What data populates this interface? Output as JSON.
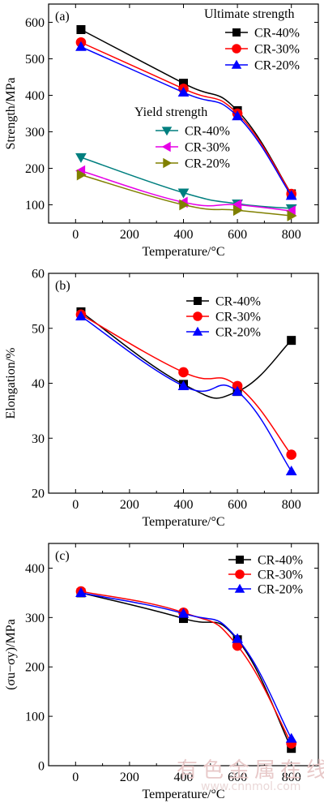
{
  "watermark": {
    "line1": "有色金属在线",
    "line2": "www.cnnmol.com"
  },
  "chart_data": [
    {
      "type": "line",
      "panel_label": "(a)",
      "xlabel": "Temperature/°C",
      "ylabel": "Strength/MPa",
      "xlim": [
        -100,
        900
      ],
      "ylim": [
        50,
        650
      ],
      "xticks": [
        0,
        200,
        400,
        600,
        800
      ],
      "yticks": [
        100,
        200,
        300,
        400,
        500,
        600
      ],
      "x": [
        20,
        400,
        600,
        800
      ],
      "legend_groups": [
        {
          "title": "Ultimate strength",
          "placement": "top-right",
          "series": [
            {
              "name": "CR-40%",
              "color": "#000000",
              "marker": "square",
              "values": [
                580,
                433,
                358,
                130
              ]
            },
            {
              "name": "CR-30%",
              "color": "#ff0000",
              "marker": "circle",
              "values": [
                545,
                418,
                350,
                130
              ]
            },
            {
              "name": "CR-20%",
              "color": "#0000ff",
              "marker": "triangle-up",
              "values": [
                533,
                408,
                343,
                125
              ]
            }
          ]
        },
        {
          "title": "Yield strength",
          "placement": "center-left",
          "series": [
            {
              "name": "CR-40%",
              "color": "#007f7f",
              "marker": "triangle-down",
              "values": [
                230,
                133,
                103,
                90
              ]
            },
            {
              "name": "CR-30%",
              "color": "#e600e6",
              "marker": "triangle-left",
              "values": [
                193,
                107,
                100,
                83
              ]
            },
            {
              "name": "CR-20%",
              "color": "#808000",
              "marker": "triangle-right",
              "values": [
                182,
                100,
                85,
                70
              ]
            }
          ]
        }
      ]
    },
    {
      "type": "line",
      "panel_label": "(b)",
      "xlabel": "Temperature/°C",
      "ylabel": "Elongation/%",
      "xlim": [
        -100,
        900
      ],
      "ylim": [
        20,
        60
      ],
      "xticks": [
        0,
        200,
        400,
        600,
        800
      ],
      "yticks": [
        20,
        30,
        40,
        50,
        60
      ],
      "x": [
        20,
        400,
        600,
        800
      ],
      "legend_groups": [
        {
          "title": "",
          "placement": "top-right",
          "series": [
            {
              "name": "CR-40%",
              "color": "#000000",
              "marker": "square",
              "values": [
                53,
                39.8,
                38.5,
                47.8
              ]
            },
            {
              "name": "CR-30%",
              "color": "#ff0000",
              "marker": "circle",
              "values": [
                52.5,
                42,
                39.5,
                27
              ]
            },
            {
              "name": "CR-20%",
              "color": "#0000ff",
              "marker": "triangle-up",
              "values": [
                52.2,
                39.5,
                38.5,
                24
              ]
            }
          ]
        }
      ]
    },
    {
      "type": "line",
      "panel_label": "(c)",
      "xlabel": "Temperature/°C",
      "ylabel": "(σu−σy)/MPa",
      "xlim": [
        -100,
        900
      ],
      "ylim": [
        0,
        450
      ],
      "xticks": [
        0,
        200,
        400,
        600,
        800
      ],
      "yticks": [
        0,
        100,
        200,
        300,
        400
      ],
      "x": [
        20,
        400,
        600,
        800
      ],
      "legend_groups": [
        {
          "title": "",
          "placement": "top-right",
          "series": [
            {
              "name": "CR-40%",
              "color": "#000000",
              "marker": "square",
              "values": [
                350,
                298,
                255,
                35
              ]
            },
            {
              "name": "CR-30%",
              "color": "#ff0000",
              "marker": "circle",
              "values": [
                353,
                310,
                243,
                45
              ]
            },
            {
              "name": "CR-20%",
              "color": "#0000ff",
              "marker": "triangle-up",
              "values": [
                350,
                308,
                257,
                55
              ]
            }
          ]
        }
      ]
    }
  ]
}
